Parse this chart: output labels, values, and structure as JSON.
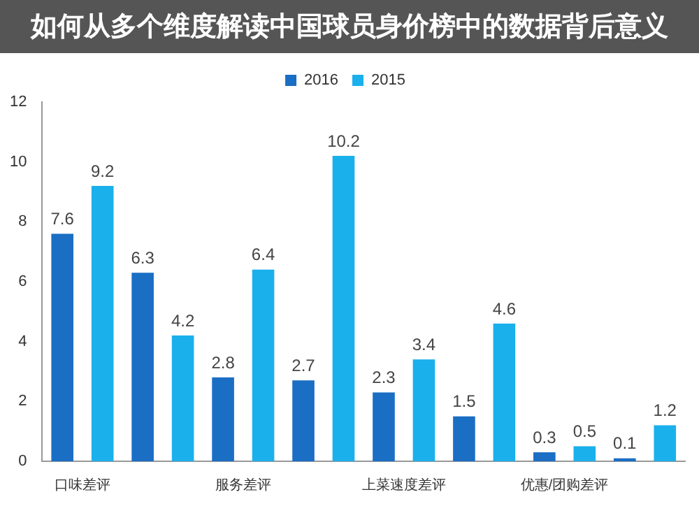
{
  "chart_data": {
    "type": "bar",
    "title": "如何从多个维度解读中国球员身价榜中的数据背后意义",
    "categories": [
      "口味差评",
      null,
      "服务差评",
      null,
      "上菜速度差评",
      null,
      "优惠/团购差评",
      null
    ],
    "series": [
      {
        "name": "2016",
        "color": "#1a6ec4",
        "values": [
          7.6,
          6.3,
          2.8,
          2.7,
          2.3,
          1.5,
          0.3,
          0.1
        ]
      },
      {
        "name": "2015",
        "color": "#1ab0ec",
        "values": [
          9.2,
          4.2,
          6.4,
          10.2,
          3.4,
          4.6,
          0.5,
          1.2
        ]
      }
    ],
    "ylim": [
      0,
      12
    ],
    "yticks": [
      0,
      2,
      4,
      6,
      8,
      10,
      12
    ],
    "grid": false,
    "legend": "top",
    "data_labels": true
  }
}
